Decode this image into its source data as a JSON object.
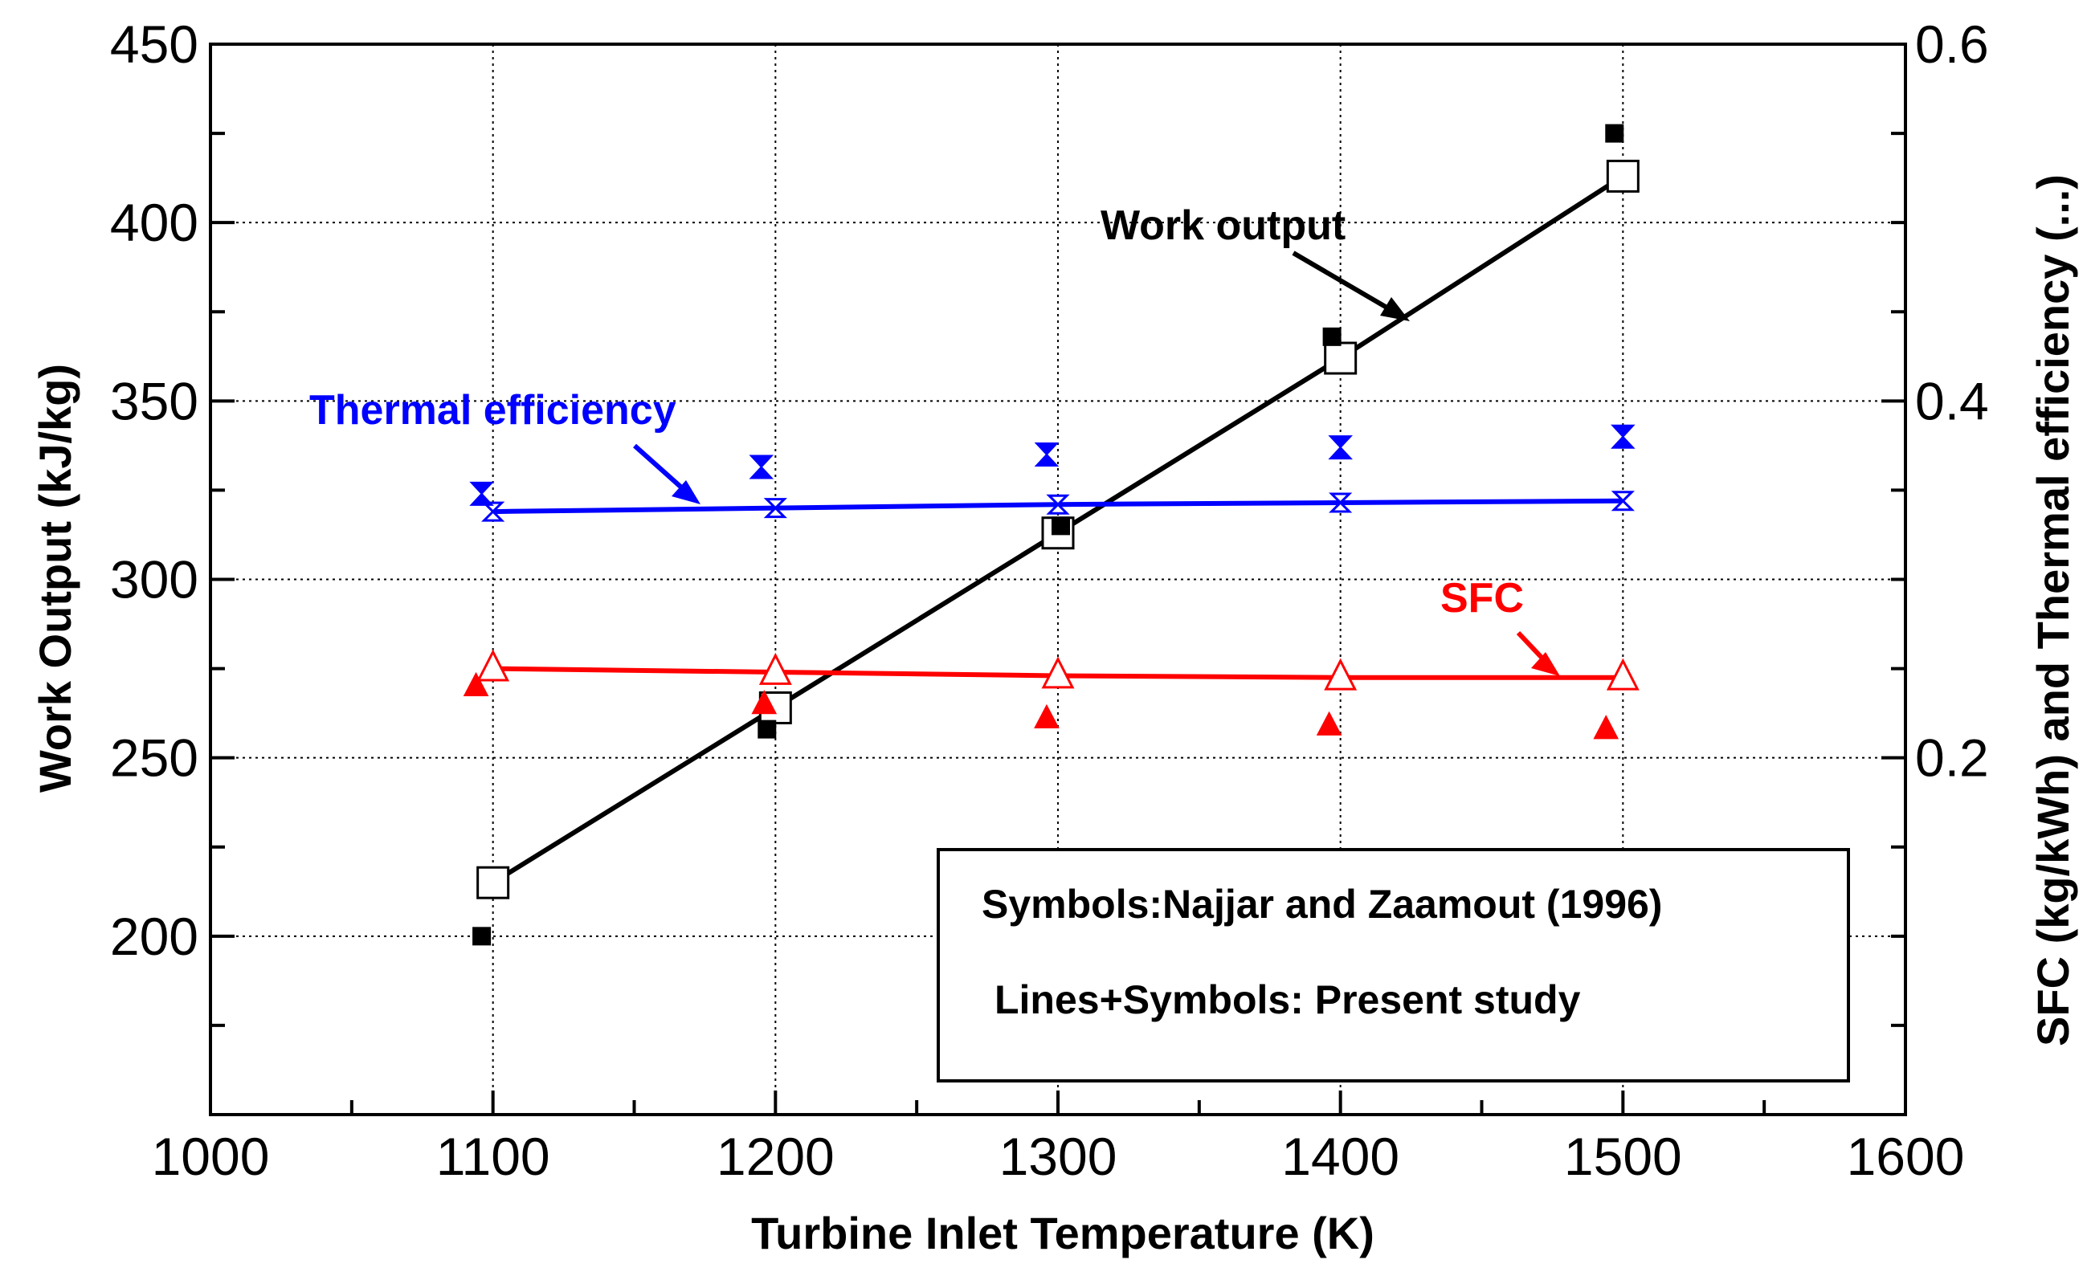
{
  "chart_data": {
    "type": "line",
    "xlabel": "Turbine Inlet Temperature (K)",
    "ylabel": "Work Output (kJ/kg)",
    "y2label": "SFC (kg/kWh) and Thermal efficiency (...)",
    "xlim": [
      1000,
      1600
    ],
    "ylim": [
      150,
      450
    ],
    "y2lim": [
      0,
      0.6
    ],
    "x_ticks": [
      1000,
      1100,
      1200,
      1300,
      1400,
      1500,
      1600
    ],
    "y_ticks": [
      200,
      250,
      300,
      350,
      400,
      450
    ],
    "y2_ticks": [
      0.2,
      0.4,
      0.6
    ],
    "grid": true,
    "series": [
      {
        "name": "Work output (present study)",
        "axis": "left",
        "style": "line+open-square",
        "color": "#000000",
        "x": [
          1100,
          1200,
          1300,
          1400,
          1500
        ],
        "y": [
          215,
          264,
          313,
          362,
          413
        ]
      },
      {
        "name": "Work output (Najjar and Zaamout 1996)",
        "axis": "left",
        "style": "filled-square",
        "color": "#000000",
        "x": [
          1096,
          1197,
          1301,
          1397,
          1497
        ],
        "y": [
          200,
          258,
          315,
          368,
          425
        ]
      },
      {
        "name": "Thermal efficiency (present study)",
        "axis": "right",
        "style": "line+open-hourglass",
        "color": "#0000ff",
        "x": [
          1100,
          1200,
          1300,
          1400,
          1500
        ],
        "y": [
          0.338,
          0.34,
          0.342,
          0.343,
          0.344
        ]
      },
      {
        "name": "Thermal efficiency (Najjar and Zaamout 1996)",
        "axis": "right",
        "style": "filled-hourglass",
        "color": "#0000ff",
        "x": [
          1096,
          1195,
          1296,
          1400,
          1500
        ],
        "y": [
          0.348,
          0.363,
          0.37,
          0.374,
          0.38
        ]
      },
      {
        "name": "SFC (present study)",
        "axis": "right",
        "style": "line+open-triangle",
        "color": "#ff0000",
        "x": [
          1100,
          1200,
          1300,
          1400,
          1500
        ],
        "y": [
          0.25,
          0.248,
          0.246,
          0.245,
          0.245
        ]
      },
      {
        "name": "SFC (Najjar and Zaamout 1996)",
        "axis": "right",
        "style": "filled-triangle",
        "color": "#ff0000",
        "x": [
          1094,
          1196,
          1296,
          1396,
          1494
        ],
        "y": [
          0.24,
          0.23,
          0.222,
          0.218,
          0.216
        ]
      }
    ],
    "annotations": [
      {
        "text": "Work output",
        "color": "#000000"
      },
      {
        "text": "Thermal efficiency",
        "color": "#0000ff"
      },
      {
        "text": "SFC",
        "color": "#ff0000"
      }
    ],
    "legend": {
      "line1": "Symbols:Najjar and Zaamout (1996)",
      "line2": "Lines+Symbols: Present study"
    }
  }
}
